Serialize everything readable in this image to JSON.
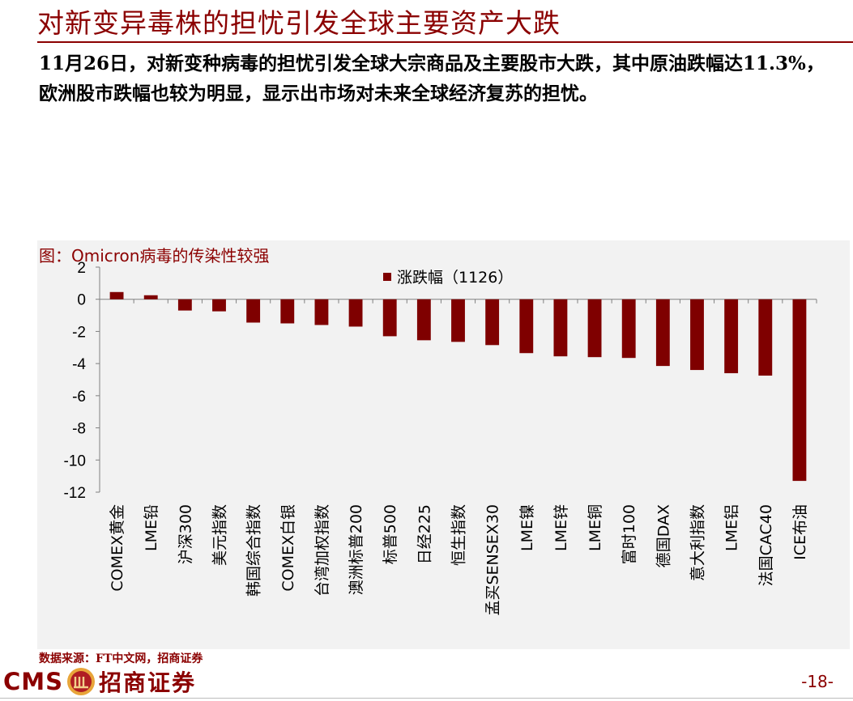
{
  "header": {
    "title": "对新变异毒株的担忧引发全球主要资产大跌",
    "intro": "11月26日，对新变种病毒的担忧引发全球大宗商品及主要股市大跌，其中原油跌幅达11.3%，欧洲股市跌幅也较为明显，显示出市场对未来全球经济复苏的担忧。"
  },
  "chart_caption": "图：Omicron病毒的传染性较强",
  "chart_data": {
    "type": "bar",
    "title": "",
    "xlabel": "",
    "ylabel": "",
    "ylim": [
      -12,
      2
    ],
    "yticks": [
      2,
      0,
      -2,
      -4,
      -6,
      -8,
      -10,
      -12
    ],
    "grid": false,
    "legend_position": "top-center",
    "bar_color": "#7F0000",
    "categories": [
      "COMEX黄金",
      "LME铅",
      "沪深300",
      "美元指数",
      "韩国综合指数",
      "COMEX白银",
      "台湾加权指数",
      "澳洲标普200",
      "标普500",
      "日经225",
      "恒生指数",
      "孟买SENSEX30",
      "LME镍",
      "LME锌",
      "LME铜",
      "富时100",
      "德国DAX",
      "意大利指数",
      "LME铝",
      "法国CAC40",
      "ICE布油"
    ],
    "series": [
      {
        "name": "涨跌幅（1126）",
        "values": [
          0.45,
          0.25,
          -0.7,
          -0.75,
          -1.45,
          -1.5,
          -1.6,
          -1.7,
          -2.3,
          -2.55,
          -2.65,
          -2.85,
          -3.35,
          -3.55,
          -3.6,
          -3.65,
          -4.15,
          -4.4,
          -4.6,
          -4.75,
          -11.3
        ]
      }
    ]
  },
  "footer": {
    "source": "数据来源：FT中文网，招商证券",
    "logo_text_en": "CMS",
    "logo_text_cn": "招商证券",
    "page_number": "-18-",
    "brand_color": "#8B0000"
  }
}
